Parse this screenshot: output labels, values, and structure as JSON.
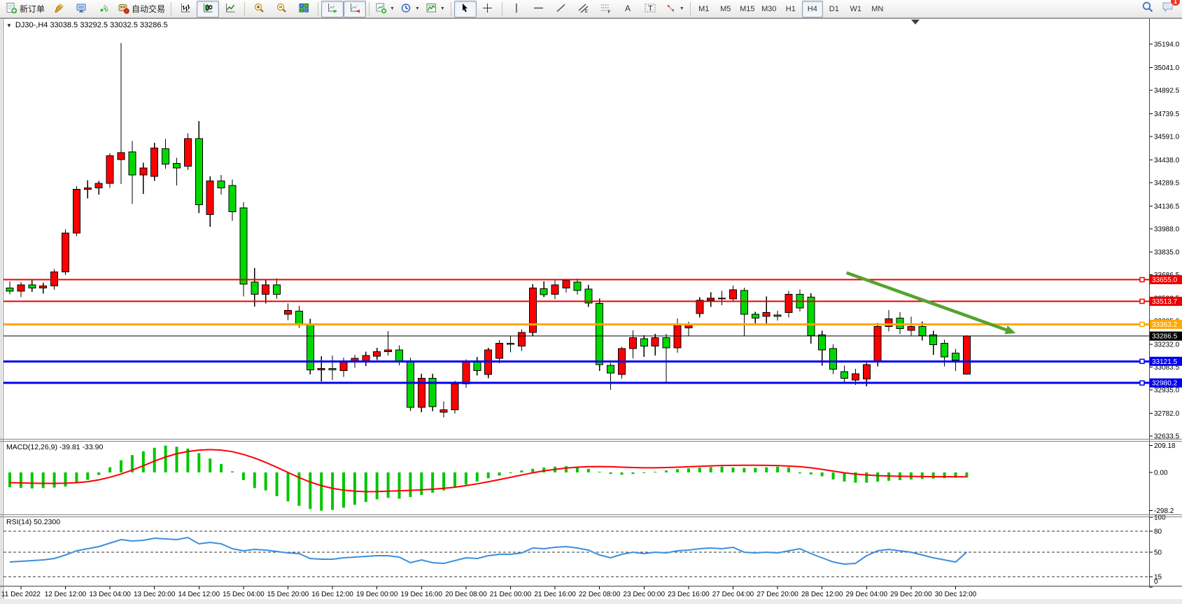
{
  "toolbar": {
    "new_order_label": "新订单",
    "auto_trading_label": "自动交易",
    "timeframes": [
      "M1",
      "M5",
      "M15",
      "M30",
      "H1",
      "H4",
      "D1",
      "W1",
      "MN"
    ],
    "active_timeframe": "H4",
    "notification_count": "1"
  },
  "chart": {
    "title": "DJ30-,H4  33038.5 33292.5 33032.5 33286.5",
    "symbol": "DJ30-",
    "period": "H4",
    "open": "33038.5",
    "high": "33292.5",
    "low": "33032.5",
    "close": "33286.5",
    "dropdown_glyph": "▼"
  },
  "price_axis": {
    "ticks": [
      35194.0,
      35041.0,
      34892.5,
      34739.5,
      34591.0,
      34438.0,
      34289.5,
      34136.5,
      33988.0,
      33835.0,
      33686.5,
      33533.5,
      33385.0,
      33232.0,
      33083.5,
      32935.0,
      32782.0,
      32633.5
    ]
  },
  "hlines": [
    {
      "value": 33655.0,
      "label": "33655.0",
      "color": "#ee0000",
      "width": 2
    },
    {
      "value": 33513.7,
      "label": "33513.7",
      "color": "#ee0000",
      "width": 2
    },
    {
      "value": 33363.2,
      "label": "33363.2",
      "color": "#ffa800",
      "width": 3
    },
    {
      "value": 33121.5,
      "label": "33121.5",
      "color": "#0000ee",
      "width": 3
    },
    {
      "value": 32980.2,
      "label": "32980.2",
      "color": "#0000ee",
      "width": 3
    }
  ],
  "current_price": {
    "value": 33286.5,
    "label": "33286.5",
    "color": "#000000"
  },
  "indicators": {
    "macd": {
      "label": "MACD(12,26,9) -39.81 -33.90",
      "name": "MACD",
      "params": "12,26,9",
      "values": [
        "-39.81",
        "-33.90"
      ],
      "scale": [
        {
          "v": 209.18,
          "t": "209.18"
        },
        {
          "v": 0,
          "t": "0.00"
        },
        {
          "v": -298.2,
          "t": "-298.2"
        }
      ]
    },
    "rsi": {
      "label": "RSI(14) 50.2300",
      "name": "RSI",
      "params": "14",
      "value": "50.2300",
      "scale": [
        {
          "v": 100,
          "t": "100"
        },
        {
          "v": 80,
          "t": "80"
        },
        {
          "v": 50,
          "t": "50"
        },
        {
          "v": 15,
          "t": "15"
        },
        {
          "v": 0,
          "t": "0"
        }
      ],
      "level_lines": [
        80,
        50,
        15
      ]
    }
  },
  "chart_data": {
    "type": "candlestick",
    "title": "DJ30-,H4",
    "symbol": "DJ30-",
    "timeframe": "H4",
    "ylim": [
      32633.5,
      35194.0
    ],
    "x_tick_labels": [
      "11 Dec 2022",
      "12 Dec 12:00",
      "13 Dec 04:00",
      "13 Dec 20:00",
      "14 Dec 12:00",
      "15 Dec 04:00",
      "15 Dec 20:00",
      "16 Dec 12:00",
      "19 Dec 00:00",
      "19 Dec 16:00",
      "20 Dec 08:00",
      "21 Dec 00:00",
      "21 Dec 16:00",
      "22 Dec 08:00",
      "23 Dec 00:00",
      "23 Dec 16:00",
      "27 Dec 04:00",
      "27 Dec 20:00",
      "28 Dec 12:00",
      "29 Dec 04:00",
      "29 Dec 20:00",
      "30 Dec 12:00"
    ],
    "bars_per_tick": 4,
    "first_tick_bar": 1,
    "bull_color": "#ff0000",
    "bear_color": "#00d900",
    "ohlc": {
      "open": [
        33600,
        33580,
        33620,
        33600,
        33615,
        33705,
        33960,
        34245,
        34255,
        34285,
        34440,
        34490,
        34340,
        34330,
        34510,
        34415,
        34395,
        34577,
        34080,
        34300,
        34270,
        34125,
        33640,
        33560,
        33620,
        33430,
        33450,
        33365,
        33065,
        33075,
        33060,
        33119,
        33120,
        33155,
        33185,
        33196,
        33119,
        32820,
        33010,
        32790,
        32805,
        32975,
        33115,
        33035,
        33140,
        33240,
        33220,
        33310,
        33595,
        33560,
        33600,
        33640,
        33594,
        33500,
        33095,
        33036,
        33205,
        33270,
        33220,
        33275,
        33210,
        33340,
        33433,
        33520,
        33535,
        33530,
        33585,
        33430,
        33415,
        33425,
        33440,
        33560,
        33540,
        33295,
        33205,
        33055,
        33000,
        33005,
        33115,
        33350,
        33405,
        33325,
        33350,
        33295,
        33240,
        33175,
        33038.5
      ],
      "high": [
        33645,
        33640,
        33660,
        33635,
        33725,
        33985,
        34265,
        34305,
        34300,
        34480,
        35200,
        34560,
        34420,
        34550,
        34575,
        34450,
        34610,
        34690,
        34330,
        34340,
        34310,
        34160,
        33730,
        33655,
        33665,
        33500,
        33485,
        33400,
        33155,
        33160,
        33145,
        33165,
        33185,
        33210,
        33320,
        33225,
        33145,
        33040,
        33040,
        32860,
        32995,
        33135,
        33150,
        33210,
        33260,
        33290,
        33330,
        33625,
        33645,
        33650,
        33656,
        33662,
        33622,
        33532,
        33112,
        33216,
        33325,
        33292,
        33300,
        33302,
        33402,
        33380,
        33542,
        33572,
        33582,
        33616,
        33602,
        33446,
        33546,
        33452,
        33582,
        33592,
        33566,
        33322,
        33232,
        33092,
        33072,
        33112,
        33372,
        33456,
        33442,
        33412,
        33382,
        33322,
        33262,
        33202,
        33292.5
      ],
      "low": [
        33560,
        33540,
        33575,
        33565,
        33590,
        33685,
        33940,
        34185,
        34210,
        34255,
        34280,
        34150,
        34215,
        34300,
        34380,
        34270,
        34370,
        34090,
        34000,
        34210,
        34040,
        33545,
        33480,
        33500,
        33530,
        33390,
        33340,
        33035,
        32990,
        33000,
        33020,
        33080,
        33090,
        33130,
        33160,
        33095,
        32795,
        32790,
        32795,
        32755,
        32780,
        32950,
        33030,
        33010,
        33110,
        33180,
        33190,
        33290,
        33540,
        33528,
        33570,
        33558,
        33478,
        33058,
        32935,
        33008,
        33140,
        33150,
        33160,
        32985,
        33178,
        33288,
        33408,
        33478,
        33488,
        33508,
        33288,
        33355,
        33364,
        33388,
        33408,
        33448,
        33238,
        33094,
        33038,
        32984,
        32968,
        32958,
        33088,
        33318,
        33298,
        33288,
        33258,
        33164,
        33088,
        33058,
        33032.5
      ],
      "close": [
        33580,
        33620,
        33600,
        33615,
        33705,
        33960,
        34245,
        34255,
        34285,
        34465,
        34485,
        34340,
        34385,
        34515,
        34410,
        34385,
        34577,
        34145,
        34300,
        34255,
        34100,
        33625,
        33560,
        33620,
        33560,
        33455,
        33362,
        33065,
        33075,
        33065,
        33120,
        33140,
        33160,
        33185,
        33196,
        33120,
        32820,
        33010,
        32825,
        32805,
        32975,
        33115,
        33060,
        33195,
        33240,
        33236,
        33310,
        33600,
        33557,
        33620,
        33650,
        33585,
        33502,
        33100,
        33045,
        33206,
        33275,
        33220,
        33275,
        33210,
        33355,
        33367,
        33520,
        33535,
        33530,
        33590,
        33430,
        33405,
        33440,
        33415,
        33560,
        33470,
        33290,
        33195,
        33070,
        33010,
        33040,
        33100,
        33350,
        33400,
        33335,
        33350,
        33290,
        33230,
        33150,
        33130,
        33286.5
      ]
    },
    "macd": {
      "histogram": [
        -115,
        -120,
        -125,
        -122,
        -118,
        -110,
        -85,
        -58,
        -20,
        40,
        95,
        135,
        165,
        192,
        209,
        200,
        186,
        150,
        108,
        65,
        8,
        -60,
        -122,
        -140,
        -185,
        -225,
        -260,
        -285,
        -298,
        -292,
        -275,
        -252,
        -230,
        -210,
        -198,
        -205,
        -192,
        -175,
        -158,
        -140,
        -118,
        -95,
        -70,
        -45,
        -25,
        -6,
        15,
        28,
        38,
        45,
        48,
        42,
        28,
        5,
        -12,
        -18,
        -12,
        -5,
        5,
        15,
        25,
        32,
        38,
        42,
        45,
        38,
        35,
        36,
        40,
        45,
        40,
        -8,
        -15,
        -30,
        -55,
        -71,
        -80,
        -80,
        -72,
        -65,
        -60,
        -55,
        -50,
        -48,
        -45,
        -42,
        -39.81
      ],
      "signal": [
        -80,
        -82,
        -84,
        -85,
        -85,
        -84,
        -80,
        -72,
        -58,
        -38,
        -12,
        18,
        52,
        88,
        120,
        146,
        163,
        174,
        178,
        174,
        162,
        140,
        112,
        78,
        40,
        0,
        -40,
        -75,
        -103,
        -124,
        -138,
        -146,
        -150,
        -149,
        -146,
        -143,
        -140,
        -136,
        -131,
        -124,
        -115,
        -103,
        -89,
        -73,
        -56,
        -38,
        -20,
        -3,
        12,
        24,
        34,
        41,
        45,
        46,
        44,
        41,
        38,
        36,
        36,
        38,
        41,
        44,
        48,
        51,
        54,
        55,
        56,
        56,
        55,
        53,
        50,
        45,
        36,
        24,
        10,
        -3,
        -13,
        -20,
        -25,
        -28,
        -30,
        -31,
        -32,
        -33,
        -33.5,
        -33.7,
        -33.9
      ],
      "ylim": [
        -298.2,
        209.18
      ]
    },
    "rsi": {
      "values": [
        36,
        37,
        38,
        39,
        41,
        46,
        52,
        55,
        58,
        63,
        68,
        66,
        67,
        70,
        69,
        68,
        71,
        62,
        64,
        62,
        55,
        52,
        54,
        53,
        51,
        49,
        48,
        41,
        40,
        40,
        42,
        43,
        44,
        45,
        45,
        43,
        35,
        39,
        35,
        34,
        38,
        42,
        41,
        45,
        47,
        47,
        49,
        56,
        55,
        57,
        58,
        56,
        53,
        46,
        42,
        47,
        50,
        48,
        50,
        49,
        52,
        53,
        55,
        56,
        55,
        57,
        50,
        49,
        50,
        49,
        52,
        55,
        48,
        42,
        36,
        33,
        34,
        45,
        52,
        54,
        52,
        50,
        46,
        42,
        39,
        36,
        50.23
      ],
      "ylim": [
        0,
        100
      ]
    },
    "trend_arrow": {
      "from_bar": 75.2,
      "from_price": 33700,
      "to_bar": 90.4,
      "to_price": 33305,
      "color": "#56a22f"
    }
  }
}
